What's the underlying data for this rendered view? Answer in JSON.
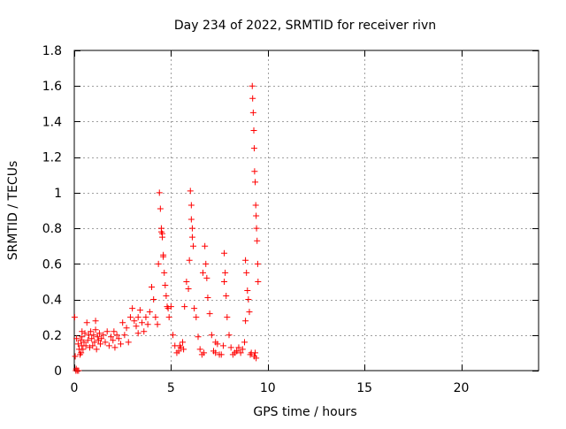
{
  "chart_data": {
    "type": "scatter",
    "title": "Day 234 of 2022, SRMTID for receiver rivn",
    "xlabel": "GPS time / hours",
    "ylabel": "SRMTID / TECUs",
    "xlim": [
      0,
      24
    ],
    "ylim": [
      0,
      1.8
    ],
    "xticks": [
      0,
      5,
      10,
      15,
      20
    ],
    "xtick_labels": [
      "0",
      "5",
      "10",
      "15",
      "20"
    ],
    "yticks": [
      0,
      0.2,
      0.4,
      0.6,
      0.8,
      1,
      1.2,
      1.4,
      1.6,
      1.8
    ],
    "ytick_labels": [
      "0",
      "0.2",
      "0.4",
      "0.6",
      "0.8",
      "1",
      "1.2",
      "1.4",
      "1.6",
      "1.8"
    ],
    "grid": true,
    "marker": "plus",
    "color": "#ff0000",
    "series": [
      {
        "x": [
          0.02,
          0.05,
          0.08,
          0.1,
          0.12,
          0.15,
          0.2,
          0.22,
          0.25,
          0.3,
          0.33,
          0.35,
          0.38,
          0.4,
          0.45,
          0.5,
          0.55,
          0.6,
          0.65,
          0.7,
          0.75,
          0.8,
          0.85,
          0.9,
          0.95,
          1.0,
          1.05,
          1.1,
          1.15,
          1.2,
          1.25,
          1.3,
          1.35,
          1.4,
          1.5,
          1.6,
          1.7,
          1.8,
          1.9,
          2.0,
          2.1,
          2.2,
          2.3,
          2.4,
          2.5,
          2.6,
          2.7,
          2.8,
          2.9,
          3.0,
          3.1,
          3.2,
          3.3,
          3.4,
          3.5,
          3.6,
          3.7,
          3.8,
          3.9,
          4.0,
          4.1,
          4.2,
          4.3,
          4.35,
          4.4,
          4.45,
          4.5,
          4.55,
          4.6,
          4.65,
          4.7,
          4.75,
          4.8,
          4.85,
          4.9,
          5.0,
          5.1,
          5.2,
          5.3,
          5.4,
          5.5,
          5.6,
          5.7,
          5.8,
          5.9,
          5.95,
          6.0,
          6.05,
          6.1,
          6.15,
          6.2,
          6.3,
          6.4,
          6.5,
          6.6,
          6.7,
          6.75,
          6.8,
          6.85,
          6.9,
          7.0,
          7.1,
          7.2,
          7.3,
          7.4,
          7.5,
          7.6,
          7.7,
          7.75,
          7.8,
          7.85,
          7.9,
          8.0,
          8.1,
          8.2,
          8.3,
          8.4,
          8.5,
          8.6,
          8.7,
          8.8,
          8.85,
          8.9,
          8.95,
          9.0,
          9.05,
          9.1,
          9.15,
          9.2,
          9.22,
          9.25,
          9.28,
          9.3,
          9.32,
          9.35,
          9.38,
          9.4,
          9.42,
          9.45,
          9.48,
          9.5,
          9.3,
          9.35,
          9.4,
          4.5,
          4.55,
          4.6,
          6.05,
          6.1,
          6.65,
          7.75,
          8.85,
          2.05,
          1.1,
          0.4,
          3.3,
          5.45,
          5.65,
          7.3,
          8.4
        ],
        "y": [
          0.3,
          0.08,
          0.0,
          0.01,
          0.18,
          0.0,
          0.15,
          0.0,
          0.12,
          0.09,
          0.17,
          0.1,
          0.14,
          0.19,
          0.12,
          0.16,
          0.21,
          0.14,
          0.27,
          0.17,
          0.2,
          0.13,
          0.22,
          0.18,
          0.14,
          0.2,
          0.16,
          0.23,
          0.12,
          0.19,
          0.17,
          0.21,
          0.15,
          0.18,
          0.2,
          0.16,
          0.22,
          0.14,
          0.19,
          0.17,
          0.13,
          0.2,
          0.18,
          0.15,
          0.27,
          0.2,
          0.24,
          0.16,
          0.3,
          0.35,
          0.28,
          0.25,
          0.3,
          0.34,
          0.27,
          0.22,
          0.3,
          0.26,
          0.33,
          0.47,
          0.4,
          0.3,
          0.26,
          0.6,
          1.0,
          0.91,
          0.8,
          0.75,
          0.64,
          0.55,
          0.48,
          0.42,
          0.36,
          0.35,
          0.3,
          0.36,
          0.2,
          0.14,
          0.1,
          0.11,
          0.13,
          0.16,
          0.36,
          0.5,
          0.46,
          0.62,
          1.01,
          0.93,
          0.8,
          0.7,
          0.35,
          0.3,
          0.19,
          0.12,
          0.09,
          0.1,
          0.7,
          0.6,
          0.52,
          0.41,
          0.32,
          0.2,
          0.11,
          0.1,
          0.15,
          0.09,
          0.09,
          0.14,
          0.66,
          0.55,
          0.42,
          0.3,
          0.2,
          0.13,
          0.09,
          0.1,
          0.11,
          0.13,
          0.1,
          0.12,
          0.16,
          0.62,
          0.55,
          0.45,
          0.4,
          0.33,
          0.09,
          0.1,
          1.6,
          1.53,
          1.45,
          1.35,
          1.25,
          1.12,
          1.06,
          0.93,
          0.87,
          0.8,
          0.73,
          0.6,
          0.5,
          0.08,
          0.1,
          0.07,
          0.78,
          0.77,
          0.65,
          0.85,
          0.75,
          0.55,
          0.5,
          0.28,
          0.22,
          0.28,
          0.22,
          0.21,
          0.14,
          0.12,
          0.16,
          0.11
        ]
      }
    ]
  }
}
